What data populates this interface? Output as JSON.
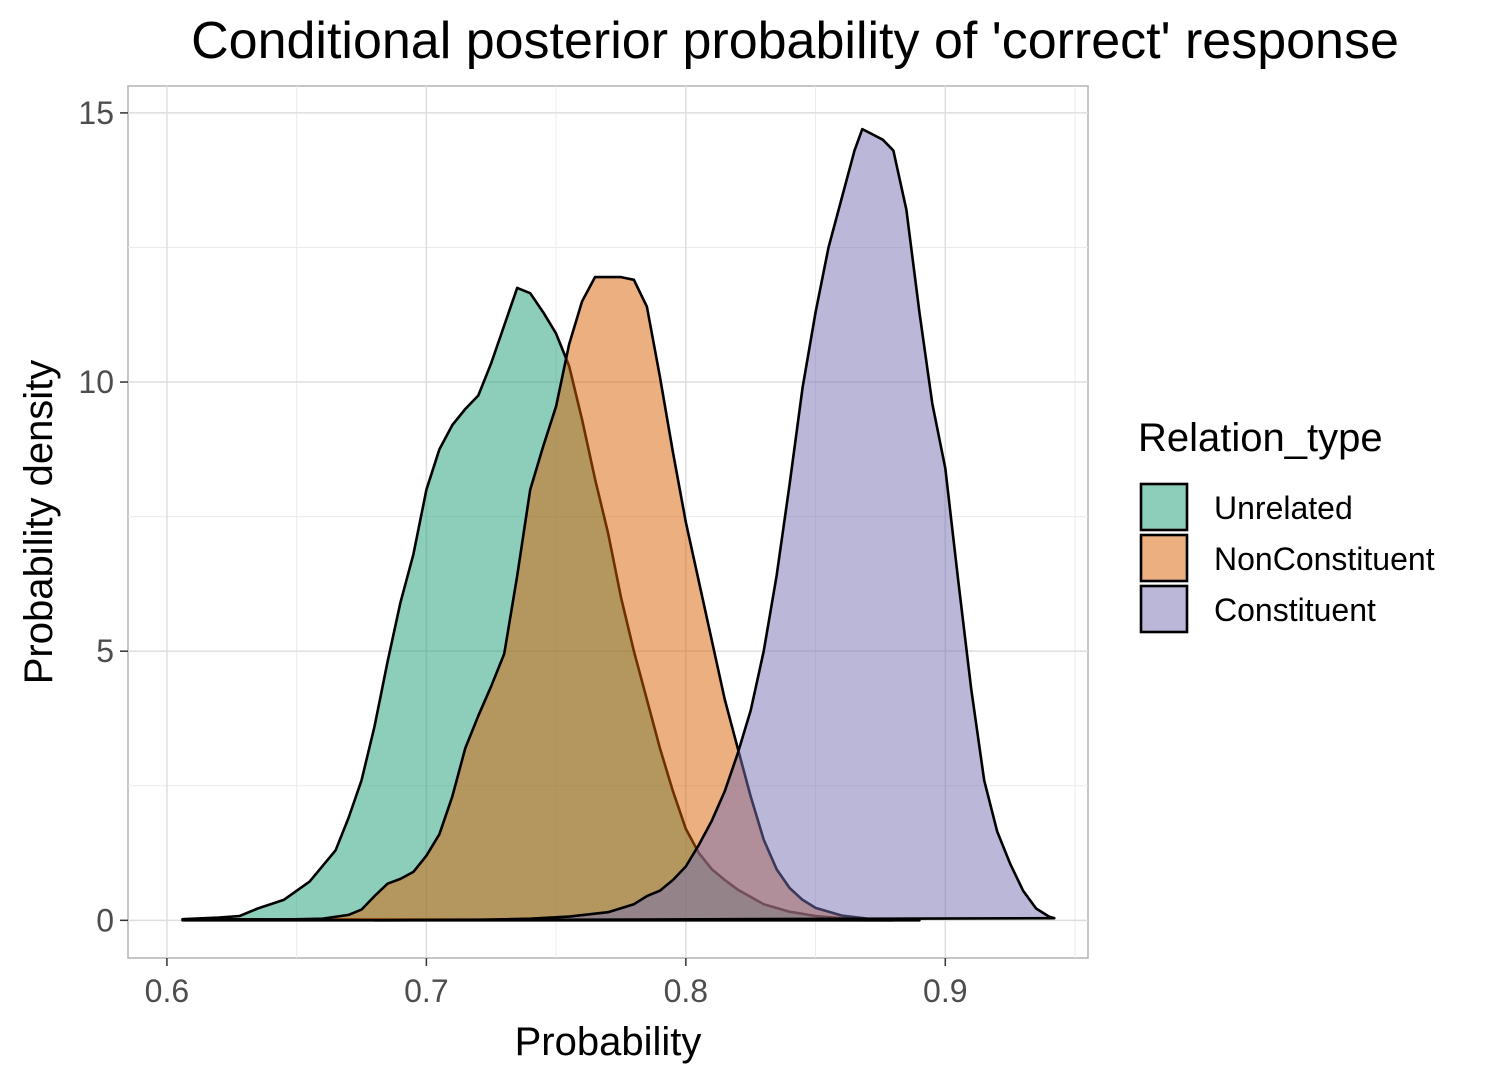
{
  "chart_data": {
    "type": "area",
    "title": "Conditional posterior probability of 'correct' response",
    "xlabel": "Probability",
    "ylabel": "Probability density",
    "xlim": [
      0.585,
      0.955
    ],
    "ylim": [
      -0.7,
      15.5
    ],
    "x_ticks": [
      0.6,
      0.7,
      0.8,
      0.9
    ],
    "x_tick_labels": [
      "0.6",
      "0.7",
      "0.8",
      "0.9"
    ],
    "y_ticks": [
      0,
      5,
      10,
      15
    ],
    "y_tick_labels": [
      "0",
      "5",
      "10",
      "15"
    ],
    "grid": true,
    "legend_position": "right",
    "legend_title": "Relation_type",
    "series": [
      {
        "name": "Unrelated",
        "color": "#1b9e77",
        "points": [
          [
            0.606,
            0.02
          ],
          [
            0.62,
            0.05
          ],
          [
            0.628,
            0.08
          ],
          [
            0.635,
            0.22
          ],
          [
            0.645,
            0.38
          ],
          [
            0.655,
            0.72
          ],
          [
            0.665,
            1.3
          ],
          [
            0.67,
            1.9
          ],
          [
            0.675,
            2.6
          ],
          [
            0.68,
            3.6
          ],
          [
            0.685,
            4.8
          ],
          [
            0.69,
            5.9
          ],
          [
            0.695,
            6.8
          ],
          [
            0.7,
            8.0
          ],
          [
            0.705,
            8.75
          ],
          [
            0.71,
            9.2
          ],
          [
            0.715,
            9.5
          ],
          [
            0.72,
            9.75
          ],
          [
            0.725,
            10.35
          ],
          [
            0.73,
            11.05
          ],
          [
            0.735,
            11.75
          ],
          [
            0.74,
            11.65
          ],
          [
            0.745,
            11.3
          ],
          [
            0.75,
            10.9
          ],
          [
            0.755,
            10.3
          ],
          [
            0.76,
            9.3
          ],
          [
            0.765,
            8.2
          ],
          [
            0.77,
            7.2
          ],
          [
            0.775,
            6.0
          ],
          [
            0.78,
            5.0
          ],
          [
            0.785,
            4.1
          ],
          [
            0.79,
            3.2
          ],
          [
            0.795,
            2.4
          ],
          [
            0.8,
            1.7
          ],
          [
            0.805,
            1.25
          ],
          [
            0.81,
            0.95
          ],
          [
            0.815,
            0.75
          ],
          [
            0.82,
            0.57
          ],
          [
            0.83,
            0.3
          ],
          [
            0.84,
            0.16
          ],
          [
            0.85,
            0.08
          ],
          [
            0.86,
            0.04
          ],
          [
            0.87,
            0.02
          ],
          [
            0.88,
            0.0
          ]
        ]
      },
      {
        "name": "NonConstituent",
        "color": "#d95f02",
        "points": [
          [
            0.606,
            0.0
          ],
          [
            0.64,
            0.01
          ],
          [
            0.66,
            0.03
          ],
          [
            0.67,
            0.1
          ],
          [
            0.675,
            0.2
          ],
          [
            0.68,
            0.45
          ],
          [
            0.685,
            0.68
          ],
          [
            0.69,
            0.77
          ],
          [
            0.695,
            0.9
          ],
          [
            0.7,
            1.2
          ],
          [
            0.705,
            1.6
          ],
          [
            0.71,
            2.3
          ],
          [
            0.715,
            3.2
          ],
          [
            0.72,
            3.8
          ],
          [
            0.725,
            4.35
          ],
          [
            0.73,
            4.95
          ],
          [
            0.735,
            6.4
          ],
          [
            0.74,
            8.0
          ],
          [
            0.745,
            8.8
          ],
          [
            0.75,
            9.55
          ],
          [
            0.755,
            10.7
          ],
          [
            0.76,
            11.5
          ],
          [
            0.765,
            11.95
          ],
          [
            0.77,
            11.95
          ],
          [
            0.775,
            11.95
          ],
          [
            0.78,
            11.9
          ],
          [
            0.785,
            11.4
          ],
          [
            0.79,
            10.1
          ],
          [
            0.795,
            8.7
          ],
          [
            0.8,
            7.4
          ],
          [
            0.805,
            6.3
          ],
          [
            0.81,
            5.2
          ],
          [
            0.815,
            4.1
          ],
          [
            0.82,
            3.2
          ],
          [
            0.825,
            2.3
          ],
          [
            0.83,
            1.5
          ],
          [
            0.835,
            0.95
          ],
          [
            0.84,
            0.6
          ],
          [
            0.845,
            0.38
          ],
          [
            0.85,
            0.23
          ],
          [
            0.86,
            0.09
          ],
          [
            0.87,
            0.03
          ],
          [
            0.88,
            0.01
          ],
          [
            0.89,
            0.0
          ]
        ]
      },
      {
        "name": "Constituent",
        "color": "#7570b3",
        "points": [
          [
            0.68,
            0.0
          ],
          [
            0.72,
            0.01
          ],
          [
            0.74,
            0.03
          ],
          [
            0.755,
            0.07
          ],
          [
            0.77,
            0.15
          ],
          [
            0.78,
            0.3
          ],
          [
            0.785,
            0.45
          ],
          [
            0.79,
            0.55
          ],
          [
            0.795,
            0.75
          ],
          [
            0.8,
            1.0
          ],
          [
            0.805,
            1.4
          ],
          [
            0.81,
            1.85
          ],
          [
            0.815,
            2.4
          ],
          [
            0.82,
            3.1
          ],
          [
            0.825,
            3.9
          ],
          [
            0.83,
            5.0
          ],
          [
            0.835,
            6.4
          ],
          [
            0.84,
            8.1
          ],
          [
            0.845,
            9.9
          ],
          [
            0.85,
            11.3
          ],
          [
            0.855,
            12.5
          ],
          [
            0.86,
            13.4
          ],
          [
            0.865,
            14.3
          ],
          [
            0.868,
            14.7
          ],
          [
            0.872,
            14.6
          ],
          [
            0.876,
            14.5
          ],
          [
            0.88,
            14.3
          ],
          [
            0.885,
            13.2
          ],
          [
            0.89,
            11.3
          ],
          [
            0.895,
            9.6
          ],
          [
            0.9,
            8.4
          ],
          [
            0.905,
            6.3
          ],
          [
            0.91,
            4.3
          ],
          [
            0.915,
            2.6
          ],
          [
            0.92,
            1.65
          ],
          [
            0.925,
            1.05
          ],
          [
            0.93,
            0.55
          ],
          [
            0.935,
            0.22
          ],
          [
            0.94,
            0.07
          ],
          [
            0.942,
            0.04
          ]
        ]
      }
    ]
  }
}
